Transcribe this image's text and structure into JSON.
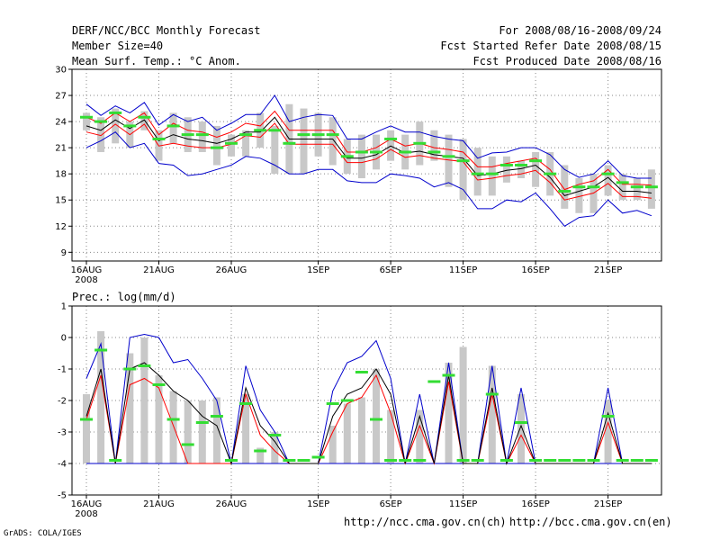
{
  "header": {
    "title": "DERF/NCC/BCC Monthly Forecast",
    "member": "Member Size=40",
    "variable": "Mean Surf. Temp.: °C Anom.",
    "period": "For 2008/08/16-2008/09/24",
    "refer": "Fcst Started Refer Date 2008/08/15",
    "produced": "Fcst Produced Date 2008/08/16"
  },
  "footer": {
    "grads": "GrADS: COLA/IGES",
    "url_ch": "http://ncc.cma.gov.cn(ch)",
    "url_en": "http://bcc.cma.gov.cn(en)"
  },
  "colors": {
    "max": "#0000cc",
    "min": "#0000cc",
    "upper": "#ff0000",
    "mean": "#000000",
    "box": "#c8c8c8",
    "median": "#33dd33",
    "grid": "#888888"
  },
  "chart_data": [
    {
      "type": "line",
      "ylabel": "Mean Surf. Temp.: °C Anom.",
      "xtick_labels": [
        "16AUG",
        "21AUG",
        "26AUG",
        "1SEP",
        "6SEP",
        "11SEP",
        "16SEP",
        "21SEP"
      ],
      "xtick_days": [
        1,
        6,
        11,
        17,
        22,
        27,
        32,
        37
      ],
      "year_label": "2008",
      "yticks": [
        9,
        12,
        15,
        18,
        21,
        24,
        27,
        30
      ],
      "ylim": [
        8,
        30
      ],
      "days": 40,
      "series": {
        "max": [
          26.0,
          24.7,
          25.8,
          25.0,
          26.2,
          23.6,
          24.8,
          24.0,
          24.5,
          23.0,
          23.8,
          24.8,
          24.8,
          27.0,
          24.0,
          24.5,
          24.8,
          24.7,
          22.0,
          22.0,
          22.8,
          23.5,
          22.8,
          22.8,
          22.3,
          22.0,
          21.8,
          19.8,
          20.4,
          20.5,
          21.0,
          21.0,
          20.2,
          18.5,
          17.6,
          18.0,
          19.5,
          17.8,
          17.5,
          17.5
        ],
        "upper": [
          24.5,
          23.8,
          25.0,
          24.0,
          25.0,
          22.5,
          23.8,
          23.0,
          22.8,
          22.2,
          22.8,
          23.8,
          23.5,
          25.2,
          23.0,
          23.0,
          23.0,
          23.0,
          20.5,
          20.5,
          21.0,
          22.0,
          21.2,
          21.5,
          21.0,
          20.8,
          20.5,
          18.8,
          18.8,
          19.2,
          19.5,
          19.8,
          18.5,
          16.2,
          16.8,
          17.2,
          18.5,
          16.8,
          16.8,
          16.7
        ],
        "mean": [
          23.5,
          23.0,
          24.2,
          23.2,
          24.2,
          21.8,
          22.5,
          22.0,
          21.8,
          21.5,
          22.0,
          22.8,
          22.8,
          24.5,
          22.0,
          22.0,
          22.0,
          22.0,
          19.8,
          19.8,
          20.2,
          21.2,
          20.4,
          20.6,
          20.2,
          20.0,
          19.8,
          17.8,
          18.0,
          18.4,
          18.6,
          19.0,
          17.6,
          15.5,
          16.0,
          16.5,
          17.6,
          16.0,
          16.0,
          15.8
        ],
        "lower": [
          22.8,
          22.4,
          23.7,
          22.5,
          23.7,
          21.2,
          21.5,
          21.2,
          21.0,
          21.0,
          21.4,
          22.4,
          22.2,
          23.8,
          21.4,
          21.4,
          21.4,
          21.4,
          19.3,
          19.3,
          19.7,
          20.8,
          19.9,
          20.1,
          19.8,
          19.6,
          19.4,
          17.3,
          17.5,
          17.8,
          18.0,
          18.4,
          17.0,
          15.0,
          15.4,
          15.8,
          16.9,
          15.4,
          15.4,
          15.2
        ],
        "min": [
          21.0,
          21.8,
          22.8,
          21.0,
          21.5,
          19.2,
          19.0,
          17.8,
          18.0,
          18.5,
          19.0,
          20.0,
          19.8,
          19.0,
          18.0,
          18.0,
          18.5,
          18.5,
          17.2,
          17.0,
          17.0,
          18.0,
          17.8,
          17.5,
          16.5,
          17.0,
          16.2,
          14.0,
          14.0,
          15.0,
          14.8,
          15.8,
          14.0,
          12.0,
          13.0,
          13.2,
          15.0,
          13.5,
          13.8,
          13.2
        ],
        "box_top": [
          25.0,
          24.5,
          25.5,
          24.0,
          25.2,
          23.0,
          25.0,
          24.5,
          24.0,
          23.5,
          22.5,
          23.0,
          25.0,
          23.5,
          26.0,
          25.5,
          25.0,
          24.5,
          22.0,
          22.5,
          22.5,
          23.0,
          22.5,
          24.0,
          23.0,
          22.5,
          22.0,
          21.0,
          20.0,
          20.0,
          19.5,
          20.5,
          20.5,
          19.0,
          17.5,
          18.0,
          19.0,
          18.0,
          17.5,
          18.5
        ],
        "box_bot": [
          23.0,
          20.5,
          21.5,
          21.0,
          23.0,
          19.5,
          21.5,
          20.5,
          20.5,
          19.0,
          20.0,
          20.0,
          21.0,
          18.0,
          18.0,
          18.0,
          20.0,
          19.0,
          18.0,
          17.5,
          18.5,
          19.5,
          18.5,
          19.0,
          19.5,
          16.5,
          15.0,
          15.5,
          15.5,
          17.0,
          17.5,
          16.5,
          15.5,
          14.0,
          13.5,
          13.5,
          15.5,
          15.0,
          15.0,
          14.0
        ],
        "median": [
          24.5,
          24.0,
          25.0,
          23.5,
          24.5,
          22.0,
          23.5,
          22.5,
          22.5,
          21.0,
          21.5,
          22.5,
          23.0,
          23.0,
          21.5,
          22.5,
          22.5,
          22.5,
          20.0,
          20.5,
          20.5,
          22.0,
          20.5,
          21.5,
          20.5,
          20.0,
          19.5,
          18.0,
          18.0,
          19.0,
          19.0,
          19.5,
          18.0,
          16.0,
          16.5,
          16.5,
          18.0,
          17.0,
          16.5,
          16.5
        ]
      }
    },
    {
      "type": "line",
      "ylabel": "Prec.: log(mm/d)",
      "xtick_labels": [
        "16AUG",
        "21AUG",
        "26AUG",
        "1SEP",
        "6SEP",
        "11SEP",
        "16SEP",
        "21SEP"
      ],
      "xtick_days": [
        1,
        6,
        11,
        17,
        22,
        27,
        32,
        37
      ],
      "year_label": "2008",
      "yticks": [
        -5,
        -4,
        -3,
        -2,
        -1,
        0,
        1
      ],
      "ylim": [
        -5,
        1
      ],
      "days": 40,
      "series": {
        "max": [
          -1.3,
          -0.2,
          -4.0,
          0.0,
          0.1,
          0.0,
          -0.8,
          -0.7,
          -1.3,
          -2.0,
          -4.0,
          -0.9,
          -2.3,
          -3.0,
          -4.0,
          -4.0,
          -4.0,
          -1.7,
          -0.8,
          -0.6,
          -0.1,
          -1.3,
          -4.0,
          -1.8,
          -4.0,
          -0.8,
          -4.0,
          -4.0,
          -0.9,
          -4.0,
          -1.6,
          -4.0,
          -4.0,
          -4.0,
          -4.0,
          -4.0,
          -1.6,
          -4.0,
          -4.0,
          -4.0
        ],
        "mean": [
          -2.5,
          -1.0,
          -4.0,
          -1.0,
          -0.8,
          -1.2,
          -1.7,
          -2.0,
          -2.5,
          -2.8,
          -4.0,
          -1.6,
          -2.8,
          -3.3,
          -4.0,
          -4.0,
          -4.0,
          -2.5,
          -1.8,
          -1.6,
          -1.0,
          -1.8,
          -4.0,
          -2.5,
          -4.0,
          -1.2,
          -4.0,
          -4.0,
          -1.6,
          -4.0,
          -2.8,
          -4.0,
          -4.0,
          -4.0,
          -4.0,
          -4.0,
          -2.4,
          -4.0,
          -4.0,
          -4.0
        ],
        "upper": [
          -2.6,
          -1.2,
          -4.0,
          -1.5,
          -1.3,
          -1.6,
          -2.8,
          -4.0,
          -4.0,
          -4.0,
          -4.0,
          -1.8,
          -3.1,
          -3.6,
          -4.0,
          -4.0,
          -4.0,
          -3.0,
          -2.1,
          -1.9,
          -1.2,
          -2.4,
          -4.0,
          -2.8,
          -4.0,
          -1.4,
          -4.0,
          -4.0,
          -1.8,
          -4.0,
          -3.1,
          -4.0,
          -4.0,
          -4.0,
          -4.0,
          -4.0,
          -2.7,
          -4.0,
          -4.0,
          -4.0
        ],
        "min": [
          -4.0,
          -4.0,
          -4.0,
          -4.0,
          -4.0,
          -4.0,
          -4.0,
          -4.0,
          -4.0,
          -4.0,
          -4.0,
          -4.0,
          -4.0,
          -4.0,
          -4.0,
          -4.0,
          -4.0,
          -4.0,
          -4.0,
          -4.0,
          -4.0,
          -4.0,
          -4.0,
          -4.0,
          -4.0,
          -4.0,
          -4.0,
          -4.0,
          -4.0,
          -4.0,
          -4.0,
          -4.0,
          -4.0,
          -4.0,
          -4.0,
          -4.0,
          -4.0,
          -4.0,
          -4.0,
          -4.0
        ],
        "box_top": [
          -1.8,
          0.2,
          -4.0,
          -0.5,
          0.0,
          -1.2,
          -1.7,
          -2.0,
          -2.0,
          -1.9,
          -4.0,
          -1.8,
          -3.5,
          -3.0,
          -4.0,
          -4.0,
          -4.0,
          -2.8,
          -2.1,
          -1.9,
          -1.0,
          -2.3,
          -4.0,
          -2.3,
          -4.0,
          -0.8,
          -0.3,
          -4.0,
          -0.9,
          -4.0,
          -1.8,
          -4.0,
          -4.0,
          -4.0,
          -4.0,
          -4.0,
          -2.0,
          -4.0,
          -4.0,
          -4.0
        ],
        "box_bot": [
          -4.0,
          -4.0,
          -4.0,
          -4.0,
          -4.0,
          -4.0,
          -4.0,
          -4.0,
          -4.0,
          -4.0,
          -4.0,
          -4.0,
          -4.0,
          -4.0,
          -4.0,
          -4.0,
          -4.0,
          -4.0,
          -4.0,
          -4.0,
          -4.0,
          -4.0,
          -4.0,
          -4.0,
          -4.0,
          -4.0,
          -4.0,
          -4.0,
          -4.0,
          -4.0,
          -4.0,
          -4.0,
          -4.0,
          -4.0,
          -4.0,
          -4.0,
          -4.0,
          -4.0,
          -4.0,
          -4.0
        ],
        "median": [
          -2.6,
          -0.4,
          -3.9,
          -1.0,
          -0.9,
          -1.5,
          -2.6,
          -3.4,
          -2.7,
          -2.5,
          -3.9,
          -2.1,
          -3.6,
          -3.1,
          -3.9,
          -3.9,
          -3.8,
          -2.1,
          -2.0,
          -1.1,
          -2.6,
          -3.9,
          -3.9,
          -3.9,
          -1.4,
          -1.2,
          -3.9,
          -3.9,
          -1.8,
          -3.9,
          -2.7,
          -3.9,
          -3.9,
          -3.9,
          -3.9,
          -3.9,
          -2.5,
          -3.9,
          -3.9,
          -3.9
        ]
      }
    }
  ]
}
